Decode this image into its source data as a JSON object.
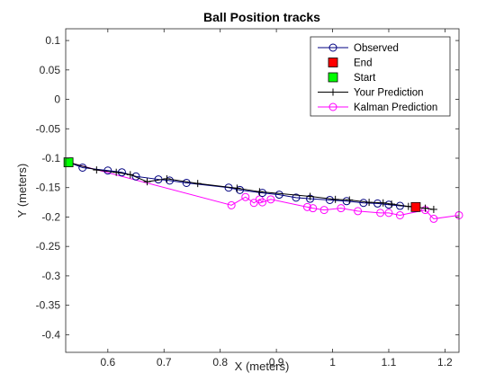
{
  "chart_data": {
    "type": "line",
    "title": "Ball Position tracks",
    "xlabel": "X (meters)",
    "ylabel": "Y (meters)",
    "xlim": [
      0.525,
      1.225
    ],
    "ylim": [
      -0.43,
      0.12
    ],
    "xticks": [
      0.6,
      0.7,
      0.8,
      0.9,
      1.0,
      1.1,
      1.2
    ],
    "xtick_labels": [
      "0.6",
      "0.7",
      "0.8",
      "0.9",
      "1",
      "1.1",
      "1.2"
    ],
    "yticks": [
      0.1,
      0.05,
      0,
      -0.05,
      -0.1,
      -0.15,
      -0.2,
      -0.25,
      -0.3,
      -0.35,
      -0.4
    ],
    "ytick_labels": [
      "0.1",
      "0.05",
      "0",
      "-0.05",
      "-0.1",
      "-0.15",
      "-0.2",
      "-0.25",
      "-0.3",
      "-0.35",
      "-0.4"
    ],
    "grid": false,
    "legend_position": "top-right",
    "legend": [
      "Observed",
      "End",
      "Start",
      "Your Prediction",
      "Kalman Prediction"
    ],
    "colors": {
      "observed": "#000080",
      "end": "#ff0000",
      "start": "#00ff00",
      "prediction": "#000000",
      "kalman": "#ff00ff"
    },
    "series": [
      {
        "name": "Observed",
        "style": "line-circle",
        "x": [
          0.53,
          0.555,
          0.6,
          0.625,
          0.65,
          0.69,
          0.71,
          0.74,
          0.815,
          0.835,
          0.875,
          0.905,
          0.935,
          0.96,
          0.995,
          1.025,
          1.055,
          1.08,
          1.1,
          1.12,
          1.148
        ],
        "y": [
          -0.107,
          -0.116,
          -0.121,
          -0.124,
          -0.131,
          -0.136,
          -0.138,
          -0.142,
          -0.15,
          -0.154,
          -0.159,
          -0.162,
          -0.167,
          -0.169,
          -0.171,
          -0.173,
          -0.176,
          -0.177,
          -0.179,
          -0.181,
          -0.183
        ]
      },
      {
        "name": "End",
        "style": "square",
        "x": [
          1.148
        ],
        "y": [
          -0.183
        ]
      },
      {
        "name": "Start",
        "style": "square",
        "x": [
          0.53
        ],
        "y": [
          -0.107
        ]
      },
      {
        "name": "Your Prediction",
        "style": "line-plus",
        "x": [
          0.53,
          0.58,
          0.615,
          0.64,
          0.67,
          0.705,
          0.76,
          0.83,
          0.87,
          0.96,
          1.005,
          1.03,
          1.065,
          1.09,
          1.105,
          1.135,
          1.165,
          1.18
        ],
        "y": [
          -0.107,
          -0.12,
          -0.124,
          -0.128,
          -0.14,
          -0.135,
          -0.143,
          -0.151,
          -0.157,
          -0.165,
          -0.17,
          -0.171,
          -0.175,
          -0.176,
          -0.178,
          -0.182,
          -0.185,
          -0.187
        ]
      },
      {
        "name": "Kalman Prediction",
        "style": "line-circle",
        "x": [
          0.53,
          0.82,
          0.845,
          0.86,
          0.87,
          0.875,
          0.89,
          0.955,
          0.965,
          0.985,
          1.015,
          1.045,
          1.085,
          1.1,
          1.12,
          1.165,
          1.18,
          1.225
        ],
        "y": [
          -0.107,
          -0.18,
          -0.166,
          -0.176,
          -0.17,
          -0.175,
          -0.17,
          -0.183,
          -0.185,
          -0.188,
          -0.185,
          -0.19,
          -0.193,
          -0.193,
          -0.197,
          -0.188,
          -0.203,
          -0.197
        ]
      }
    ]
  }
}
